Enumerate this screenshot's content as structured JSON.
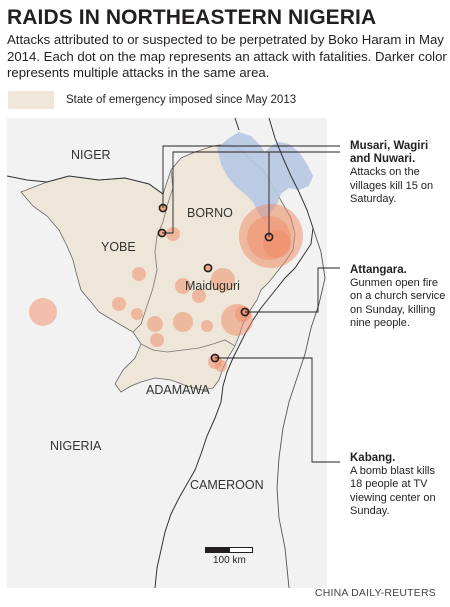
{
  "header": {
    "title": "RAIDS IN NORTHEASTERN NIGERIA",
    "subtitle": "Attacks attributed to or suspected to be perpetrated by Boko Haram in May 2014. Each dot on the map represents an attack with fatalities. Darker color represents multiple attacks in the same area."
  },
  "legend": {
    "label": "State of emergency imposed since May 2013",
    "color": "#ede6d9"
  },
  "map": {
    "labels": {
      "niger": "NIGER",
      "borno": "BORNO",
      "yobe": "YOBE",
      "maiduguri": "Maiduguri",
      "adamawa": "ADAMAWA",
      "nigeria": "NIGERIA",
      "cameroon": "CAMEROON"
    },
    "scale_label": "100 km",
    "colors": {
      "background": "#f3f2f2",
      "emergency_state": "#ede6d9",
      "lake": "#b7c7e3",
      "attack_dot": "#f08a66",
      "border": "#333333"
    }
  },
  "callouts": [
    {
      "place": "Musari, Wagiri and Nuwari.",
      "text": "Attacks on the villages kill 15 on Saturday."
    },
    {
      "place": "Attangara.",
      "text": "Gunmen open fire on a church service on Sunday, killing nine people."
    },
    {
      "place": "Kabang.",
      "text": "A bomb blast kills 18 people at TV viewing center on Sunday."
    }
  ],
  "source": "CHINA DAILY-REUTERS"
}
